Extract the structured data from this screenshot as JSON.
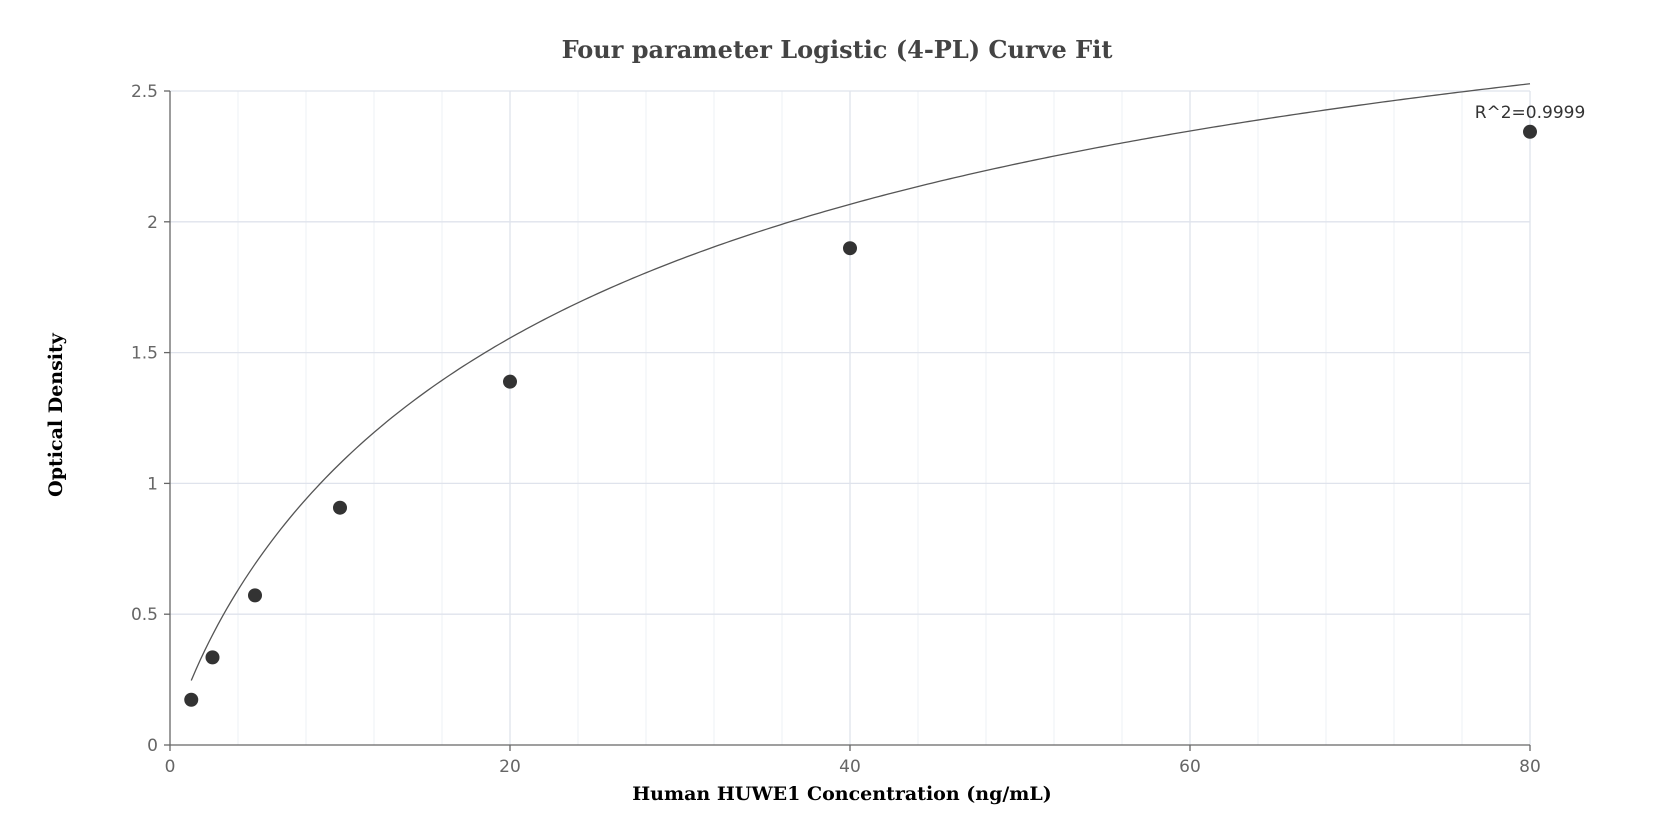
{
  "chart_data": {
    "type": "scatter",
    "title": "Four parameter Logistic (4-PL) Curve Fit",
    "xlabel": "Human HUWE1 Concentration (ng/mL)",
    "ylabel": "Optical Density",
    "xlim": [
      0,
      80
    ],
    "ylim": [
      0,
      2.5
    ],
    "x_ticks": [
      0,
      20,
      40,
      60,
      80
    ],
    "y_ticks": [
      0,
      0.5,
      1,
      1.5,
      2,
      2.5
    ],
    "x_tick_labels": [
      "0",
      "20",
      "40",
      "60",
      "80"
    ],
    "y_tick_labels": [
      "0",
      "0.5",
      "1",
      "1.5",
      "2",
      "2.5"
    ],
    "grid": true,
    "points": [
      {
        "x": 1.25,
        "y": 0.173
      },
      {
        "x": 2.5,
        "y": 0.335
      },
      {
        "x": 5,
        "y": 0.572
      },
      {
        "x": 10,
        "y": 0.907
      },
      {
        "x": 20,
        "y": 1.389
      },
      {
        "x": 40,
        "y": 1.899
      },
      {
        "x": 80,
        "y": 2.344
      }
    ],
    "fit_curve": {
      "model": "4PL",
      "params": {
        "a": 0.0,
        "b": 0.85,
        "c": 26.0,
        "d": 3.5
      }
    },
    "annotations": [
      {
        "text": "R^2=0.9999",
        "x": 80,
        "y": 2.344
      }
    ],
    "colors": {
      "point": "#333333",
      "curve": "#555555",
      "grid_major": "#dfe3ec",
      "grid_minor": "#eef0f5",
      "axis": "#666666"
    }
  }
}
